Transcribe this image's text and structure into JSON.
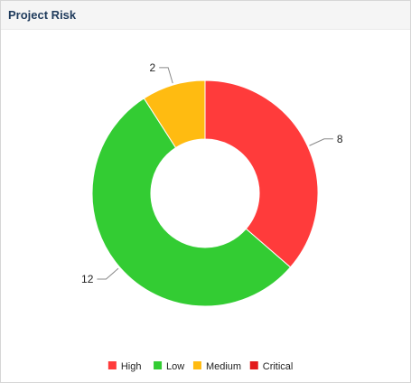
{
  "panel": {
    "title": "Project Risk"
  },
  "chart_data": {
    "type": "pie",
    "donut": true,
    "categories": [
      "High",
      "Low",
      "Medium",
      "Critical"
    ],
    "values": [
      8,
      12,
      2,
      0
    ],
    "colors": [
      "#ff3b3b",
      "#33cc33",
      "#ffbb11",
      "#e31a1c"
    ],
    "data_labels": [
      "8",
      "12",
      "2",
      ""
    ],
    "legend": "bottom"
  }
}
